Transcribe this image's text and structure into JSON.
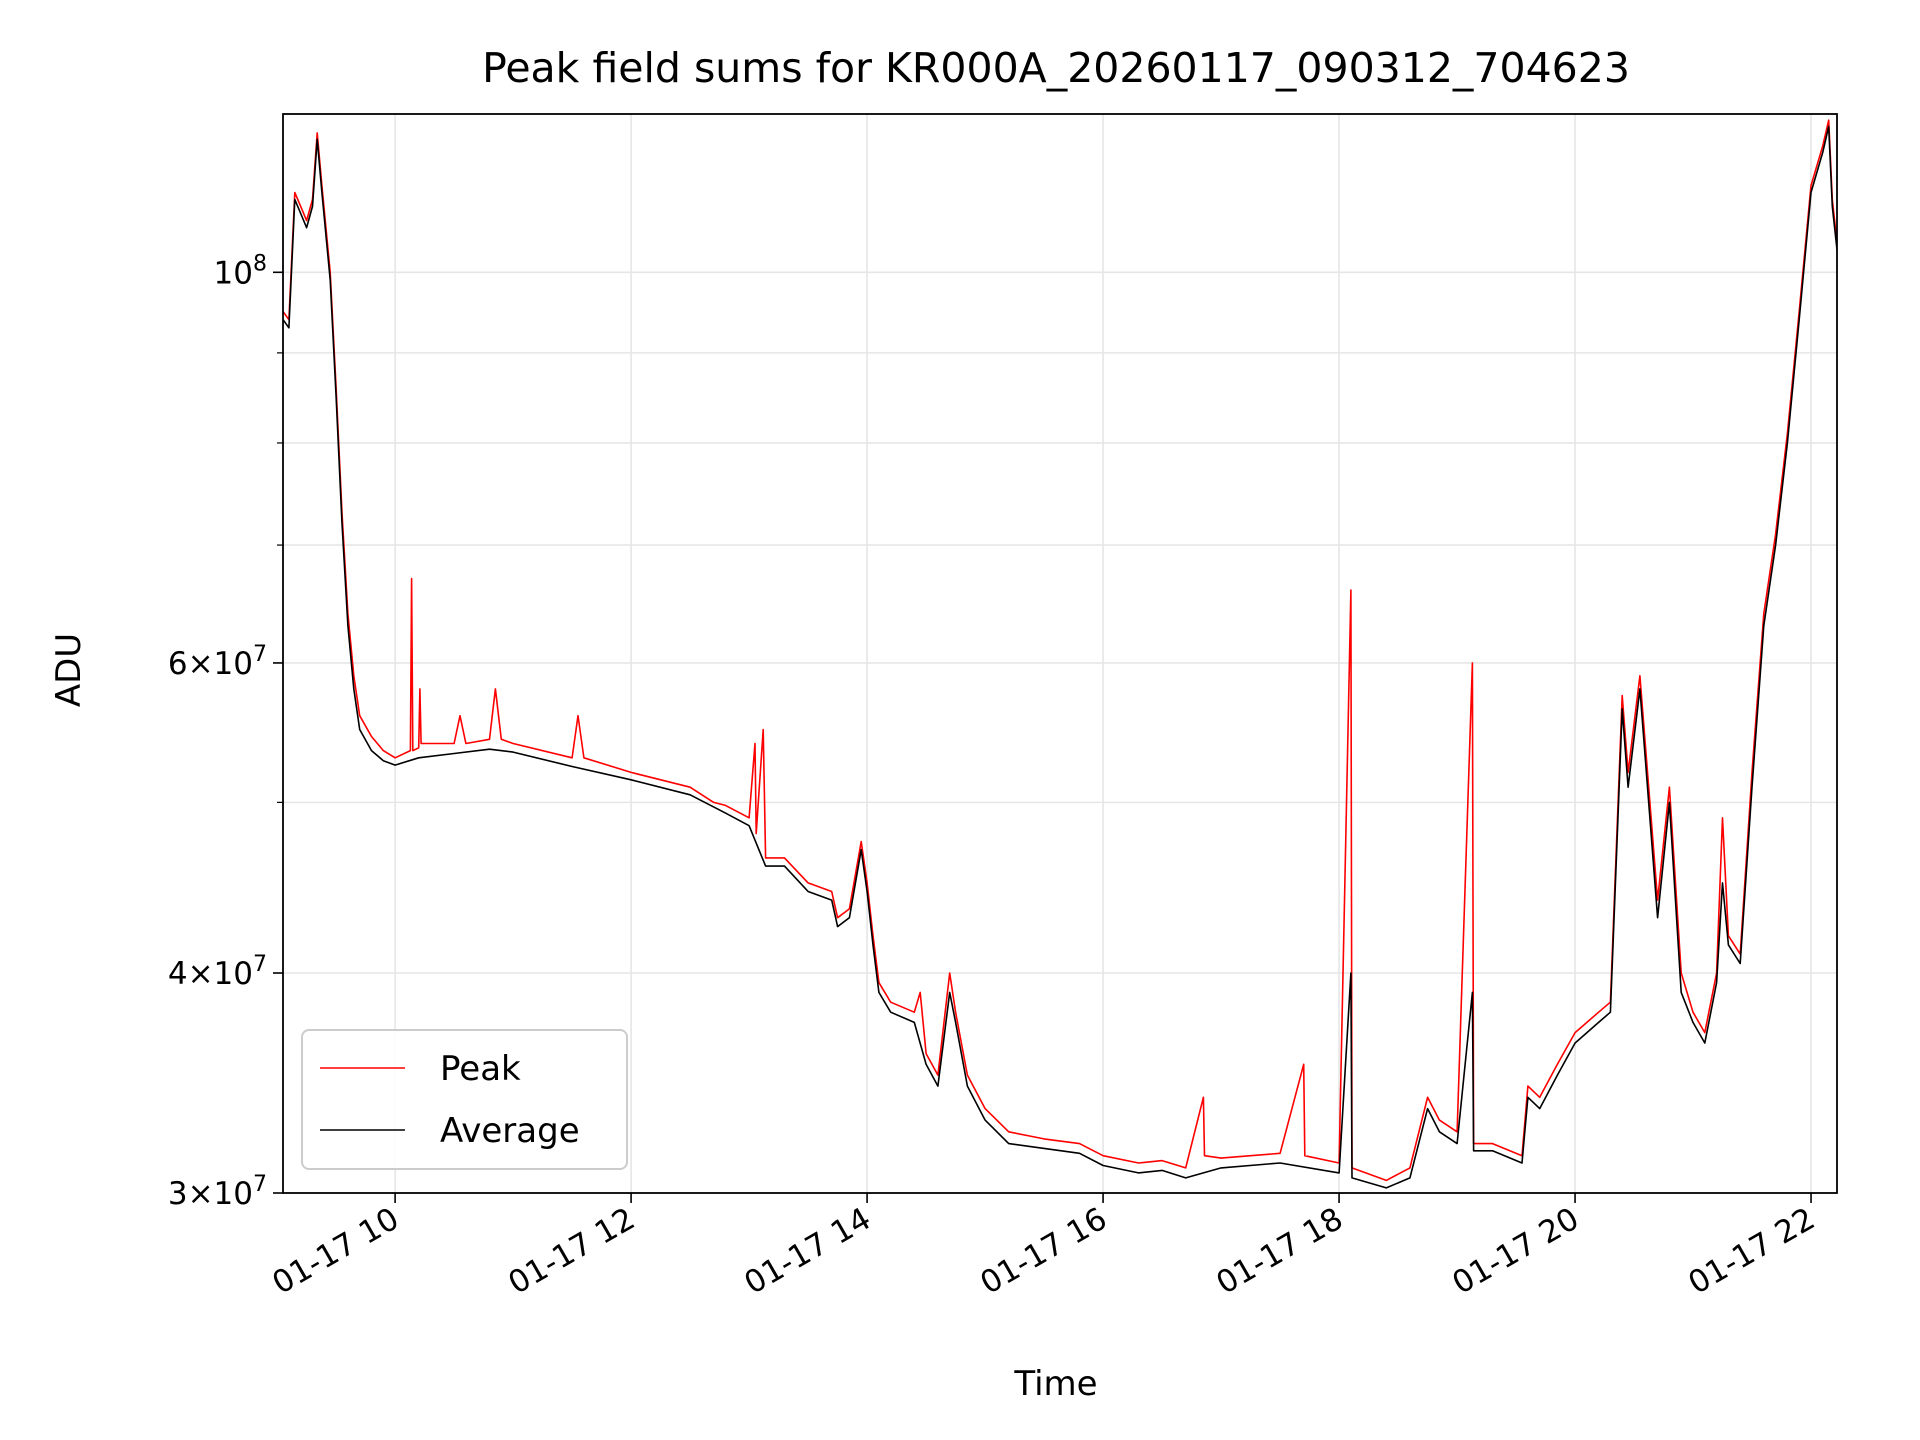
{
  "chart_data": {
    "type": "line",
    "title": "Peak field sums for KR000A_20260117_090312_704623",
    "xlabel": "Time",
    "ylabel": "ADU",
    "x_tick_labels": [
      "01-17 10",
      "01-17 12",
      "01-17 14",
      "01-17 16",
      "01-17 18",
      "01-17 20",
      "01-17 22"
    ],
    "x_ticks_hours": [
      10,
      12,
      14,
      16,
      18,
      20,
      22
    ],
    "xlim_hours": [
      9.05,
      22.22
    ],
    "y_scale": "log",
    "ylim": [
      30000000,
      123000000
    ],
    "y_tick_labels": [
      {
        "value": 30000000,
        "mantissa": "3",
        "exponent": "7"
      },
      {
        "value": 40000000,
        "mantissa": "4",
        "exponent": "7"
      },
      {
        "value": 60000000,
        "mantissa": "6",
        "exponent": "7"
      },
      {
        "value": 100000000,
        "mantissa": "",
        "exponent": "8"
      }
    ],
    "y_minor_ticks": [
      50000000,
      70000000,
      80000000,
      90000000
    ],
    "grid": true,
    "legend_position": "lower-left",
    "series": [
      {
        "name": "Peak",
        "color": "#ff0000",
        "points": [
          [
            9.05,
            95000000
          ],
          [
            9.1,
            94000000
          ],
          [
            9.15,
            111000000
          ],
          [
            9.2,
            109000000
          ],
          [
            9.25,
            107000000
          ],
          [
            9.3,
            110000000
          ],
          [
            9.34,
            120000000
          ],
          [
            9.38,
            112000000
          ],
          [
            9.45,
            100000000
          ],
          [
            9.5,
            86000000
          ],
          [
            9.55,
            73000000
          ],
          [
            9.6,
            64000000
          ],
          [
            9.65,
            59000000
          ],
          [
            9.7,
            56000000
          ],
          [
            9.8,
            54500000
          ],
          [
            9.9,
            53500000
          ],
          [
            10.0,
            53000000
          ],
          [
            10.13,
            53500000
          ],
          [
            10.14,
            67000000
          ],
          [
            10.15,
            53500000
          ],
          [
            10.2,
            53700000
          ],
          [
            10.21,
            58000000
          ],
          [
            10.22,
            54000000
          ],
          [
            10.5,
            54000000
          ],
          [
            10.55,
            56000000
          ],
          [
            10.6,
            54000000
          ],
          [
            10.8,
            54300000
          ],
          [
            10.85,
            58000000
          ],
          [
            10.9,
            54300000
          ],
          [
            11.0,
            54000000
          ],
          [
            11.5,
            53000000
          ],
          [
            11.55,
            56000000
          ],
          [
            11.6,
            53000000
          ],
          [
            12.0,
            52000000
          ],
          [
            12.5,
            51000000
          ],
          [
            12.7,
            50000000
          ],
          [
            12.8,
            49800000
          ],
          [
            13.0,
            49000000
          ],
          [
            13.05,
            54000000
          ],
          [
            13.06,
            48000000
          ],
          [
            13.12,
            55000000
          ],
          [
            13.14,
            46500000
          ],
          [
            13.3,
            46500000
          ],
          [
            13.5,
            45000000
          ],
          [
            13.7,
            44500000
          ],
          [
            13.75,
            43000000
          ],
          [
            13.85,
            43500000
          ],
          [
            13.95,
            47500000
          ],
          [
            14.0,
            45000000
          ],
          [
            14.05,
            42000000
          ],
          [
            14.1,
            39500000
          ],
          [
            14.2,
            38500000
          ],
          [
            14.4,
            38000000
          ],
          [
            14.45,
            39000000
          ],
          [
            14.5,
            36000000
          ],
          [
            14.6,
            35000000
          ],
          [
            14.7,
            40000000
          ],
          [
            14.75,
            38000000
          ],
          [
            14.85,
            35000000
          ],
          [
            15.0,
            33500000
          ],
          [
            15.2,
            32500000
          ],
          [
            15.5,
            32200000
          ],
          [
            15.8,
            32000000
          ],
          [
            16.0,
            31500000
          ],
          [
            16.3,
            31200000
          ],
          [
            16.5,
            31300000
          ],
          [
            16.7,
            31000000
          ],
          [
            16.85,
            34000000
          ],
          [
            16.86,
            31500000
          ],
          [
            17.0,
            31400000
          ],
          [
            17.5,
            31600000
          ],
          [
            17.7,
            35500000
          ],
          [
            17.71,
            31500000
          ],
          [
            18.0,
            31200000
          ],
          [
            18.1,
            66000000
          ],
          [
            18.11,
            31000000
          ],
          [
            18.4,
            30500000
          ],
          [
            18.6,
            31000000
          ],
          [
            18.75,
            34000000
          ],
          [
            18.85,
            33000000
          ],
          [
            19.0,
            32500000
          ],
          [
            19.13,
            60000000
          ],
          [
            19.14,
            32000000
          ],
          [
            19.3,
            32000000
          ],
          [
            19.55,
            31500000
          ],
          [
            19.6,
            34500000
          ],
          [
            19.7,
            34000000
          ],
          [
            19.85,
            35500000
          ],
          [
            20.0,
            37000000
          ],
          [
            20.2,
            38000000
          ],
          [
            20.3,
            38500000
          ],
          [
            20.4,
            57500000
          ],
          [
            20.45,
            52000000
          ],
          [
            20.55,
            59000000
          ],
          [
            20.7,
            44000000
          ],
          [
            20.8,
            51000000
          ],
          [
            20.9,
            40000000
          ],
          [
            21.0,
            38000000
          ],
          [
            21.1,
            37000000
          ],
          [
            21.2,
            40000000
          ],
          [
            21.25,
            49000000
          ],
          [
            21.3,
            42000000
          ],
          [
            21.4,
            41000000
          ],
          [
            21.5,
            52000000
          ],
          [
            21.6,
            64000000
          ],
          [
            21.7,
            71000000
          ],
          [
            21.8,
            81000000
          ],
          [
            21.9,
            95000000
          ],
          [
            22.0,
            112000000
          ],
          [
            22.1,
            118000000
          ],
          [
            22.15,
            122000000
          ],
          [
            22.18,
            110000000
          ],
          [
            22.22,
            104000000
          ]
        ]
      },
      {
        "name": "Average",
        "color": "#000000",
        "points": [
          [
            9.05,
            94000000
          ],
          [
            9.1,
            93000000
          ],
          [
            9.15,
            110000000
          ],
          [
            9.2,
            108000000
          ],
          [
            9.25,
            106000000
          ],
          [
            9.3,
            109000000
          ],
          [
            9.34,
            119000000
          ],
          [
            9.38,
            111000000
          ],
          [
            9.45,
            99000000
          ],
          [
            9.5,
            85000000
          ],
          [
            9.55,
            72000000
          ],
          [
            9.6,
            63000000
          ],
          [
            9.65,
            58000000
          ],
          [
            9.7,
            55000000
          ],
          [
            9.8,
            53500000
          ],
          [
            9.9,
            52800000
          ],
          [
            10.0,
            52500000
          ],
          [
            10.2,
            53000000
          ],
          [
            10.5,
            53300000
          ],
          [
            10.8,
            53600000
          ],
          [
            11.0,
            53400000
          ],
          [
            11.5,
            52400000
          ],
          [
            12.0,
            51500000
          ],
          [
            12.5,
            50500000
          ],
          [
            12.8,
            49300000
          ],
          [
            13.0,
            48500000
          ],
          [
            13.14,
            46000000
          ],
          [
            13.3,
            46000000
          ],
          [
            13.5,
            44500000
          ],
          [
            13.7,
            44000000
          ],
          [
            13.75,
            42500000
          ],
          [
            13.85,
            43000000
          ],
          [
            13.95,
            47000000
          ],
          [
            14.0,
            44500000
          ],
          [
            14.05,
            41500000
          ],
          [
            14.1,
            39000000
          ],
          [
            14.2,
            38000000
          ],
          [
            14.4,
            37500000
          ],
          [
            14.5,
            35500000
          ],
          [
            14.6,
            34500000
          ],
          [
            14.7,
            39000000
          ],
          [
            14.75,
            37500000
          ],
          [
            14.85,
            34500000
          ],
          [
            15.0,
            33000000
          ],
          [
            15.2,
            32000000
          ],
          [
            15.5,
            31800000
          ],
          [
            15.8,
            31600000
          ],
          [
            16.0,
            31100000
          ],
          [
            16.3,
            30800000
          ],
          [
            16.5,
            30900000
          ],
          [
            16.7,
            30600000
          ],
          [
            17.0,
            31000000
          ],
          [
            17.5,
            31200000
          ],
          [
            18.0,
            30800000
          ],
          [
            18.1,
            40000000
          ],
          [
            18.11,
            30600000
          ],
          [
            18.4,
            30200000
          ],
          [
            18.6,
            30600000
          ],
          [
            18.75,
            33500000
          ],
          [
            18.85,
            32500000
          ],
          [
            19.0,
            32000000
          ],
          [
            19.13,
            39000000
          ],
          [
            19.14,
            31700000
          ],
          [
            19.3,
            31700000
          ],
          [
            19.55,
            31200000
          ],
          [
            19.6,
            34000000
          ],
          [
            19.7,
            33500000
          ],
          [
            19.85,
            35000000
          ],
          [
            20.0,
            36500000
          ],
          [
            20.2,
            37500000
          ],
          [
            20.3,
            38000000
          ],
          [
            20.4,
            56500000
          ],
          [
            20.45,
            51000000
          ],
          [
            20.55,
            58000000
          ],
          [
            20.7,
            43000000
          ],
          [
            20.8,
            50000000
          ],
          [
            20.9,
            39000000
          ],
          [
            21.0,
            37500000
          ],
          [
            21.1,
            36500000
          ],
          [
            21.2,
            39500000
          ],
          [
            21.25,
            45000000
          ],
          [
            21.3,
            41500000
          ],
          [
            21.4,
            40500000
          ],
          [
            21.5,
            51000000
          ],
          [
            21.6,
            63000000
          ],
          [
            21.7,
            70000000
          ],
          [
            21.8,
            80000000
          ],
          [
            21.9,
            94000000
          ],
          [
            22.0,
            111000000
          ],
          [
            22.1,
            117000000
          ],
          [
            22.15,
            121000000
          ],
          [
            22.18,
            109000000
          ],
          [
            22.22,
            103000000
          ]
        ]
      }
    ]
  }
}
